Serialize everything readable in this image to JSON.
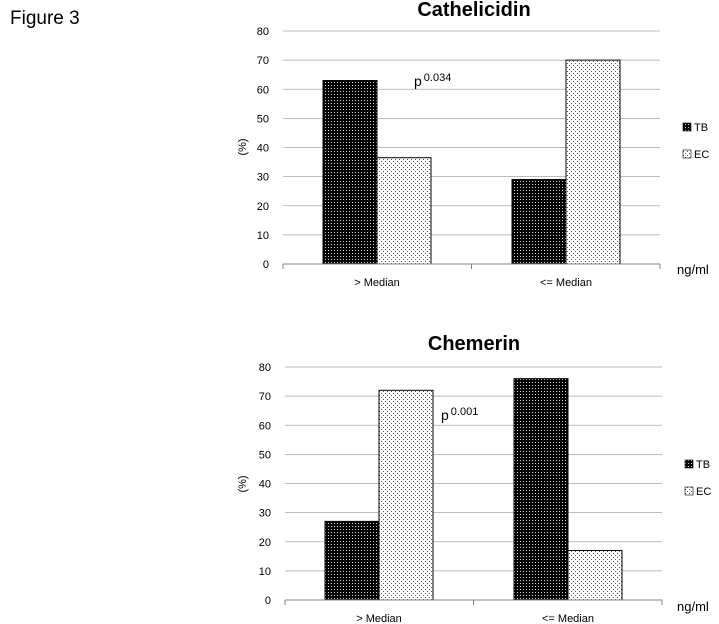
{
  "figure_label": "Figure 3",
  "colors": {
    "TB": "#000000",
    "EC": "#ffffff",
    "grid": "#a6a6a6",
    "axis": "#808080"
  },
  "chart_data": [
    {
      "type": "bar",
      "title": "Cathelicidin",
      "categories": [
        "> Median",
        "<= Median"
      ],
      "series": [
        {
          "name": "TB",
          "values": [
            63,
            29
          ]
        },
        {
          "name": "EC",
          "values": [
            36.5,
            70
          ]
        }
      ],
      "ylabel": "(%)",
      "xlabel": "ng/ml",
      "ylim": [
        0,
        80
      ],
      "yticks": [
        0,
        10,
        20,
        30,
        40,
        50,
        60,
        70,
        80
      ],
      "grid": true,
      "legend": "right",
      "annotation": {
        "text": "p",
        "superscript": "0.034"
      }
    },
    {
      "type": "bar",
      "title": "Chemerin",
      "categories": [
        "> Median",
        "<= Median"
      ],
      "series": [
        {
          "name": "TB",
          "values": [
            27,
            76
          ]
        },
        {
          "name": "EC",
          "values": [
            72,
            17
          ]
        }
      ],
      "ylabel": "(%)",
      "xlabel": "ng/ml",
      "ylim": [
        0,
        80
      ],
      "yticks": [
        0,
        10,
        20,
        30,
        40,
        50,
        60,
        70,
        80
      ],
      "grid": true,
      "legend": "right",
      "annotation": {
        "text": "p",
        "superscript": "0.001"
      }
    }
  ]
}
